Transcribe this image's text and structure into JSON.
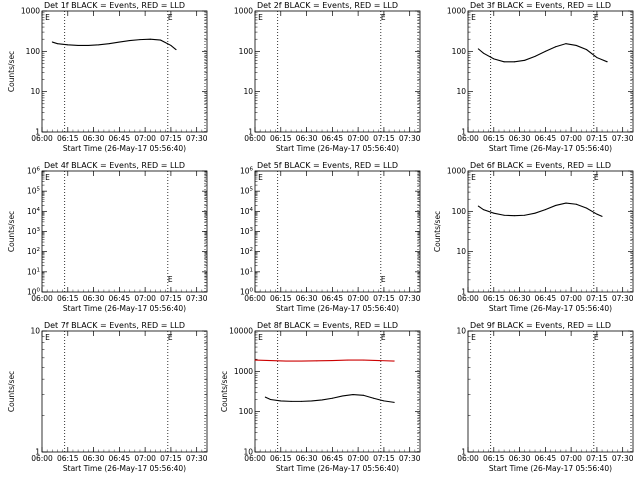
{
  "chart_data": [
    {
      "type": "line",
      "title": "Det 1f BLACK = Events, RED = LLD",
      "xlabel": "Start Time (26-May-17 05:56:40)",
      "ylabel": "Counts/sec",
      "yscale": "log",
      "ylim": [
        1,
        1000
      ],
      "yticks": [
        "1",
        "10",
        "100",
        "1000"
      ],
      "xticks": [
        "06:00",
        "06:15",
        "06:30",
        "06:45",
        "07:00",
        "07:15",
        "07:30"
      ],
      "markers": [
        "E",
        "E"
      ],
      "series": [
        {
          "color": "#000000",
          "x": [
            6.1,
            6.15,
            6.25,
            6.35,
            6.45,
            6.55,
            6.65,
            6.75,
            6.85,
            6.95,
            7.05,
            7.15,
            7.25,
            7.3
          ],
          "y": [
            170,
            155,
            145,
            140,
            140,
            145,
            155,
            170,
            185,
            195,
            200,
            190,
            140,
            110
          ]
        }
      ]
    },
    {
      "type": "line",
      "title": "Det 2f BLACK = Events, RED = LLD",
      "xlabel": "Start Time (26-May-17 05:56:40)",
      "ylabel": "",
      "yscale": "log",
      "ylim": [
        1,
        1000
      ],
      "yticks": [
        "1",
        "10",
        "100",
        "1000"
      ],
      "xticks": [
        "06:00",
        "06:15",
        "06:30",
        "06:45",
        "07:00",
        "07:15",
        "07:30"
      ],
      "markers": [
        "E",
        "E"
      ],
      "series": []
    },
    {
      "type": "line",
      "title": "Det 3f BLACK = Events, RED = LLD",
      "xlabel": "Start Time (26-May-17 05:56:40)",
      "ylabel": "",
      "yscale": "log",
      "ylim": [
        1,
        1000
      ],
      "yticks": [
        "1",
        "10",
        "100",
        "1000"
      ],
      "xticks": [
        "06:00",
        "06:15",
        "06:30",
        "06:45",
        "07:00",
        "07:15",
        "07:30"
      ],
      "markers": [
        "E",
        "E"
      ],
      "series": [
        {
          "color": "#000000",
          "x": [
            6.1,
            6.15,
            6.25,
            6.35,
            6.45,
            6.55,
            6.65,
            6.75,
            6.85,
            6.95,
            7.05,
            7.15,
            7.25,
            7.35
          ],
          "y": [
            115,
            90,
            65,
            55,
            55,
            60,
            75,
            100,
            130,
            155,
            140,
            110,
            70,
            55
          ]
        }
      ]
    },
    {
      "type": "line",
      "title": "Det 4f BLACK = Events, RED = LLD",
      "xlabel": "Start Time (26-May-17 05:56:40)",
      "ylabel": "Counts/sec",
      "yscale": "log",
      "ylim": [
        1,
        1000000
      ],
      "yticks": [
        "10^0",
        "10^1",
        "10^2",
        "10^3",
        "10^4",
        "10^5",
        "10^6"
      ],
      "xticks": [
        "06:00",
        "06:15",
        "06:30",
        "06:45",
        "07:00",
        "07:15",
        "07:30"
      ],
      "markers": [
        "E",
        "E"
      ],
      "series": []
    },
    {
      "type": "line",
      "title": "Det 5f BLACK = Events, RED = LLD",
      "xlabel": "Start Time (26-May-17 05:56:40)",
      "ylabel": "",
      "yscale": "log",
      "ylim": [
        1,
        1000000
      ],
      "yticks": [
        "10^0",
        "10^1",
        "10^2",
        "10^3",
        "10^4",
        "10^5",
        "10^6"
      ],
      "xticks": [
        "06:00",
        "06:15",
        "06:30",
        "06:45",
        "07:00",
        "07:15",
        "07:30"
      ],
      "markers": [
        "E",
        "E"
      ],
      "series": []
    },
    {
      "type": "line",
      "title": "Det 6f BLACK = Events, RED = LLD",
      "xlabel": "Start Time (26-May-17 05:56:40)",
      "ylabel": "Counts/sec",
      "yscale": "log",
      "ylim": [
        1,
        1000
      ],
      "yticks": [
        "1",
        "10",
        "100",
        "1000"
      ],
      "xticks": [
        "06:00",
        "06:15",
        "06:30",
        "06:45",
        "07:00",
        "07:15",
        "07:30"
      ],
      "markers": [
        "E",
        "E"
      ],
      "series": [
        {
          "color": "#000000",
          "x": [
            6.1,
            6.15,
            6.25,
            6.35,
            6.45,
            6.55,
            6.65,
            6.75,
            6.85,
            6.95,
            7.05,
            7.15,
            7.25,
            7.3
          ],
          "y": [
            135,
            110,
            90,
            80,
            78,
            80,
            90,
            110,
            140,
            160,
            150,
            120,
            85,
            75
          ]
        }
      ]
    },
    {
      "type": "line",
      "title": "Det 7f BLACK = Events, RED = LLD",
      "xlabel": "Start Time (26-May-17 05:56:40)",
      "ylabel": "Counts/sec",
      "yscale": "log",
      "ylim": [
        1,
        10
      ],
      "yticks": [
        "1",
        "10"
      ],
      "xticks": [
        "06:00",
        "06:15",
        "06:30",
        "06:45",
        "07:00",
        "07:15",
        "07:30"
      ],
      "markers": [
        "E",
        "E"
      ],
      "series": []
    },
    {
      "type": "line",
      "title": "Det 8f BLACK = Events, RED = LLD",
      "xlabel": "Start Time (26-May-17 05:56:40)",
      "ylabel": "Counts/sec",
      "yscale": "log",
      "ylim": [
        10,
        10000
      ],
      "yticks": [
        "10",
        "100",
        "1000",
        "10000"
      ],
      "xticks": [
        "06:00",
        "06:15",
        "06:30",
        "06:45",
        "07:00",
        "07:15",
        "07:30"
      ],
      "markers": [
        "E",
        "E"
      ],
      "series": [
        {
          "color": "#000000",
          "x": [
            6.1,
            6.15,
            6.25,
            6.35,
            6.45,
            6.55,
            6.65,
            6.75,
            6.85,
            6.95,
            7.05,
            7.15,
            7.25,
            7.35
          ],
          "y": [
            230,
            200,
            185,
            180,
            180,
            185,
            195,
            215,
            245,
            265,
            255,
            215,
            185,
            170
          ]
        },
        {
          "color": "#cc0000",
          "x": [
            6.0,
            6.15,
            6.3,
            6.45,
            6.6,
            6.75,
            6.9,
            7.05,
            7.2,
            7.35
          ],
          "y": [
            1900,
            1850,
            1800,
            1800,
            1820,
            1850,
            1900,
            1900,
            1850,
            1800
          ]
        }
      ]
    },
    {
      "type": "line",
      "title": "Det 9f BLACK = Events, RED = LLD",
      "xlabel": "Start Time (26-May-17 05:56:40)",
      "ylabel": "",
      "yscale": "log",
      "ylim": [
        1,
        10
      ],
      "yticks": [
        "1",
        "10"
      ],
      "xticks": [
        "06:00",
        "06:15",
        "06:30",
        "06:45",
        "07:00",
        "07:15",
        "07:30"
      ],
      "markers": [
        "E",
        "E"
      ],
      "series": []
    }
  ]
}
